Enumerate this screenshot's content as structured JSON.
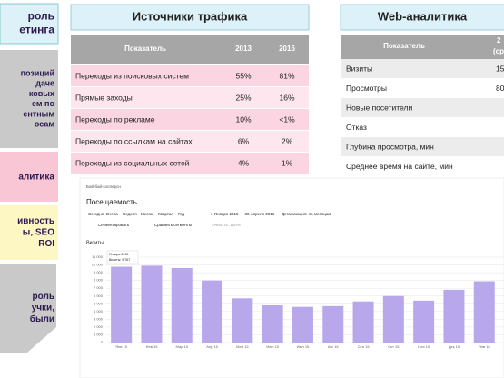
{
  "left_boxes": [
    {
      "lines": [
        "роль",
        "етинга"
      ]
    },
    {
      "lines": [
        "позиций",
        "даче",
        "ковых",
        "ем по",
        "ентным",
        "осам"
      ]
    },
    {
      "lines": [
        "алитика"
      ]
    },
    {
      "lines": [
        "ивность",
        "ы, SEO",
        "ROI"
      ]
    },
    {
      "lines": [
        "роль",
        "учки,",
        "были"
      ]
    }
  ],
  "traffic_table": {
    "title": "Источники трафика",
    "header": [
      "Показатель",
      "2013",
      "2016"
    ],
    "rows": [
      [
        "Переходы из поисковых систем",
        "55%",
        "81%"
      ],
      [
        "Прямые заходы",
        "25%",
        "16%"
      ],
      [
        "Переходы по рекламе",
        "10%",
        "<1%"
      ],
      [
        "Переходы по ссылкам на сайтах",
        "6%",
        "2%"
      ],
      [
        "Переходы из социальных сетей",
        "4%",
        "1%"
      ]
    ]
  },
  "web_table": {
    "title": "Web-аналитика",
    "header": [
      "Показатель",
      "2",
      "(сред"
    ],
    "rows": [
      [
        "Визиты",
        "15"
      ],
      [
        "Просмотры",
        "80"
      ],
      [
        "Новые посетители",
        ""
      ],
      [
        "Отказ",
        ""
      ],
      [
        "Глубина просмотра, мин",
        ""
      ],
      [
        "Среднее время на сайте, мин",
        ""
      ]
    ]
  },
  "metrika": {
    "site": "Бай-бай-коллерсн",
    "title": "Посещаемость",
    "periods": [
      "Сегодня",
      "Вчера",
      "Неделя",
      "Месяц",
      "Квартал",
      "Год"
    ],
    "date_range": "1 Января 2015 — 30 Апреля 2016",
    "detail": "Детализация: по месяцам",
    "segment": "Сегментировать",
    "compare": "Сравнить сегменты",
    "accuracy": "Точность: 100%",
    "tooltip": [
      "Январь 2015",
      "Визиты: 9 767"
    ]
  },
  "chart_data": {
    "type": "bar",
    "title": "Визиты",
    "color": "#b9a7ec",
    "categories": [
      "Янв 15",
      "Фев 15",
      "Мар 15",
      "Апр 15",
      "Май 15",
      "Июн 15",
      "Июл 15",
      "Авг 15",
      "Сен 15",
      "Окт 15",
      "Ноя 15",
      "Дек 15",
      "Янв 16"
    ],
    "values": [
      9767,
      9900,
      9600,
      8000,
      5700,
      4800,
      4600,
      4700,
      5300,
      6000,
      5400,
      6800,
      7900
    ],
    "ylim": [
      0,
      11000
    ],
    "yticks": [
      0,
      {
        "value": 1000,
        "label": "1 000"
      },
      {
        "value": 2000,
        "label": "2 000"
      },
      {
        "value": 3000,
        "label": "3 000"
      },
      {
        "value": 4000,
        "label": "4 000"
      },
      {
        "value": 5000,
        "label": "5 000"
      },
      {
        "value": 6000,
        "label": "6 000"
      },
      {
        "value": 7000,
        "label": "7 000"
      },
      {
        "value": 8000,
        "label": "8 000"
      },
      {
        "value": 9000,
        "label": "9 000"
      },
      {
        "value": 10000,
        "label": "10 000"
      },
      {
        "value": 11000,
        "label": "11 000"
      }
    ],
    "grid": true
  }
}
